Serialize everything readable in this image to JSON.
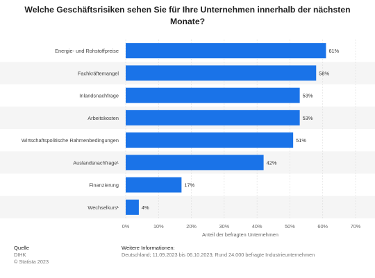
{
  "title": "Welche Geschäftsrisiken sehen Sie für Ihre Unternehmen innerhalb der nächsten Monate?",
  "chart_data": {
    "type": "bar",
    "orientation": "horizontal",
    "categories": [
      "Energie- und Rohstoffpreise",
      "Fachkräftemangel",
      "Inlandsnachfrage",
      "Arbeitskosten",
      "Wirtschaftspolitische Rahmenbedingungen",
      "Auslandsnachfrage¹",
      "Finanzierung",
      "Wechselkurs¹"
    ],
    "values": [
      61,
      58,
      53,
      53,
      51,
      42,
      17,
      4
    ],
    "value_labels": [
      "61%",
      "58%",
      "53%",
      "53%",
      "51%",
      "42%",
      "17%",
      "4%"
    ],
    "xlabel": "Anteil der befragten Unternehmen",
    "xlim": [
      0,
      70
    ],
    "xticks": [
      0,
      10,
      20,
      30,
      40,
      50,
      60,
      70
    ],
    "xtick_labels": [
      "0%",
      "10%",
      "20%",
      "30%",
      "40%",
      "50%",
      "60%",
      "70%"
    ],
    "grid": true,
    "bar_color": "#1a73e8",
    "band_color": "#f5f5f5"
  },
  "footer": {
    "source_heading": "Quelle",
    "source_lines": [
      "DIHK",
      "© Statista 2023"
    ],
    "info_heading": "Weitere Informationen:",
    "info_text": "Deutschland; 11.09.2023 bis 06.10.2023; Rund 24.000 befragte Industrieunternehmen"
  }
}
